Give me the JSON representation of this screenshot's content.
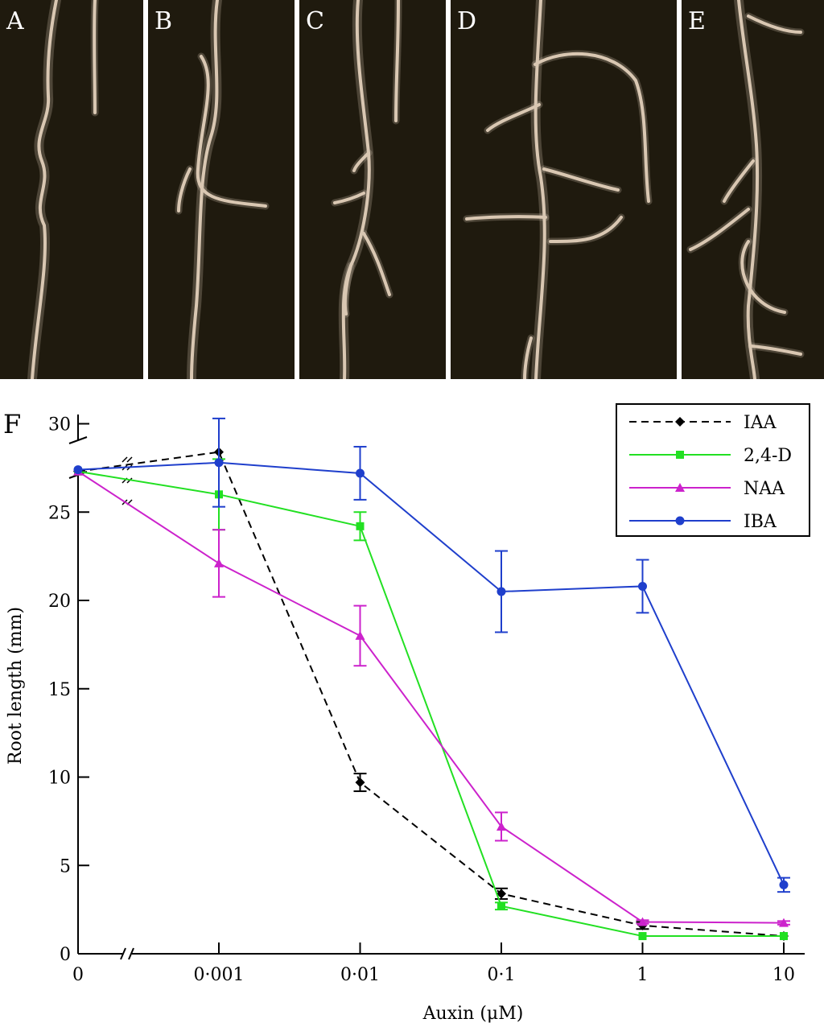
{
  "photo_panels": [
    {
      "label": "A",
      "image": "seedling-root-photo-no-auxin"
    },
    {
      "label": "B",
      "image": "seedling-root-photo"
    },
    {
      "label": "C",
      "image": "seedling-root-photo"
    },
    {
      "label": "D",
      "image": "seedling-root-photo"
    },
    {
      "label": "E",
      "image": "seedling-root-photo"
    }
  ],
  "colors": {
    "photo_background": "#1f1a0e",
    "root": "#d9c7b2",
    "divider": "#ffffff"
  },
  "chart_data": {
    "panel_label": "F",
    "type": "line",
    "xlabel": "Auxin (μM)",
    "ylabel": "Root length (mm)",
    "x_scale": "log",
    "x_axis_break": true,
    "y_axis_break": true,
    "x_ticks": [
      "0",
      "0·001",
      "0·01",
      "0·1",
      "1",
      "10"
    ],
    "y_ticks": [
      "0",
      "5",
      "10",
      "15",
      "20",
      "25",
      "30"
    ],
    "ylim": [
      0,
      30
    ],
    "legend_position": "top-right",
    "series": [
      {
        "name": "IAA",
        "color": "#000000",
        "dash": true,
        "marker": "diamond",
        "x": [
          0,
          0.001,
          0.01,
          0.1,
          1,
          10
        ],
        "values": [
          27.3,
          28.4,
          9.7,
          3.4,
          1.6,
          1.0
        ],
        "errors": [
          0,
          0,
          0.5,
          0.3,
          0.2,
          0
        ]
      },
      {
        "name": "2,4-D",
        "color": "#22e022",
        "dash": false,
        "marker": "square",
        "x": [
          0,
          0.001,
          0.01,
          0.1,
          1,
          10
        ],
        "values": [
          27.3,
          26.0,
          24.2,
          2.7,
          1.0,
          1.0
        ],
        "errors": [
          0,
          2.0,
          0.8,
          0.2,
          0,
          0
        ]
      },
      {
        "name": "NAA",
        "color": "#cc22cc",
        "dash": false,
        "marker": "triangle",
        "x": [
          0,
          0.001,
          0.01,
          0.1,
          1,
          10
        ],
        "values": [
          27.3,
          22.1,
          18.0,
          7.2,
          1.8,
          1.75
        ],
        "errors": [
          0,
          1.9,
          1.7,
          0.8,
          0.1,
          0.1
        ]
      },
      {
        "name": "IBA",
        "color": "#1f3fcc",
        "dash": false,
        "marker": "circle",
        "x": [
          0,
          0.001,
          0.01,
          0.1,
          1,
          10
        ],
        "values": [
          27.4,
          27.8,
          27.2,
          20.5,
          20.8,
          3.9
        ],
        "errors": [
          0,
          2.5,
          1.5,
          2.3,
          1.5,
          0.4
        ]
      }
    ]
  }
}
